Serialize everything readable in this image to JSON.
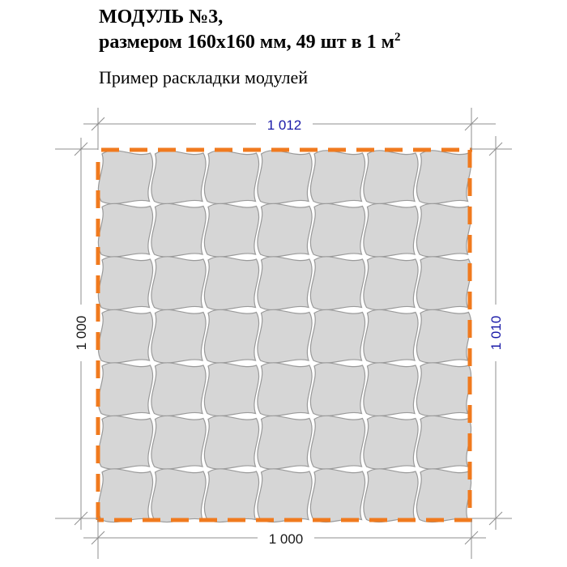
{
  "header": {
    "title_line1": "МОДУЛЬ №3,",
    "title_line2_prefix": "размером 160х160 мм, 49 шт в 1 м",
    "title_line2_sup": "2",
    "subtitle": "Пример раскладки модулей"
  },
  "dimensions": {
    "top": "1 012",
    "bottom": "1 000",
    "left": "1 000",
    "right": "1 010"
  },
  "layout_grid": {
    "rows": 7,
    "cols": 7
  },
  "colors": {
    "tile_fill": "#d6d6d6",
    "tile_stroke": "#9a9a9a",
    "boundary": "#f07a1e",
    "dim_line": "#8f8f8f",
    "dim_text_blue": "#1a1aa8",
    "dim_text_black": "#1a1a1a"
  }
}
